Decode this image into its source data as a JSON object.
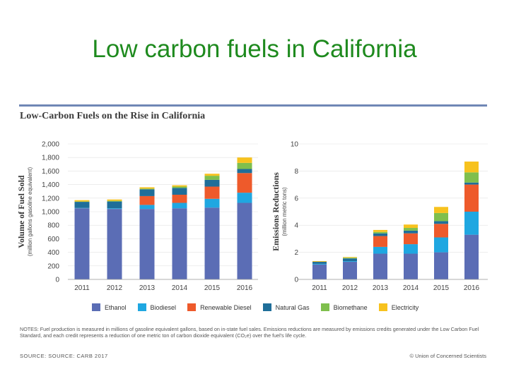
{
  "slide_title": "Low carbon fuels in California",
  "figure_title": "Low-Carbon Fuels on the Rise in California",
  "notes": "NOTES: Fuel production is measured in millions of gasoline equivalent gallons, based on in-state fuel sales. Emissions reductions are measured by emissions credits generated under the Low Carbon Fuel Standard, and each credit represents a reduction of one metric ton of carbon dioxide equivalent (CO₂e) over the fuel's life cycle.",
  "source": "SOURCE: SOURCE: CARB 2017",
  "credit": "© Union of Concerned Scientists",
  "colors": {
    "Ethanol": "#5b6db5",
    "Biodiesel": "#1fa7e1",
    "Renewable Diesel": "#ee5a2b",
    "Natural Gas": "#1f6e99",
    "Biomethane": "#7fbf4d",
    "Electricity": "#f7c21e"
  },
  "chart_data": [
    {
      "type": "bar",
      "stacked": true,
      "ylabel": "Volume of Fuel Sold",
      "ylabel_sub": "(million gallons gasoline equivalent)",
      "ylim": [
        0,
        2000
      ],
      "yticks": [
        0,
        200,
        400,
        600,
        800,
        1000,
        1200,
        1400,
        1600,
        1800,
        2000
      ],
      "ytick_labels": [
        "0",
        "200",
        "400",
        "600",
        "800",
        "1,000",
        "1,200",
        "1,400",
        "1,600",
        "1,800",
        "2,000"
      ],
      "categories": [
        "2011",
        "2012",
        "2013",
        "2014",
        "2015",
        "2016"
      ],
      "series": [
        {
          "name": "Ethanol",
          "values": [
            1050,
            1040,
            1040,
            1050,
            1060,
            1130
          ]
        },
        {
          "name": "Biodiesel",
          "values": [
            5,
            10,
            60,
            80,
            130,
            150
          ]
        },
        {
          "name": "Renewable Diesel",
          "values": [
            0,
            0,
            130,
            120,
            180,
            290
          ]
        },
        {
          "name": "Natural Gas",
          "values": [
            90,
            100,
            100,
            100,
            100,
            60
          ]
        },
        {
          "name": "Biomethane",
          "values": [
            5,
            10,
            10,
            20,
            60,
            90
          ]
        },
        {
          "name": "Electricity",
          "values": [
            20,
            20,
            20,
            20,
            30,
            80
          ]
        }
      ]
    },
    {
      "type": "bar",
      "stacked": true,
      "ylabel": "Emissions Reductions",
      "ylabel_sub": "(million metric tons)",
      "ylim": [
        0,
        10
      ],
      "yticks": [
        0,
        2,
        4,
        6,
        8,
        10
      ],
      "ytick_labels": [
        "0",
        "2",
        "4",
        "6",
        "8",
        "10"
      ],
      "categories": [
        "2011",
        "2012",
        "2013",
        "2014",
        "2015",
        "2016"
      ],
      "series": [
        {
          "name": "Ethanol",
          "values": [
            1.1,
            1.3,
            1.9,
            1.9,
            2.0,
            3.3
          ]
        },
        {
          "name": "Biodiesel",
          "values": [
            0.05,
            0.05,
            0.5,
            0.7,
            1.1,
            1.7
          ]
        },
        {
          "name": "Renewable Diesel",
          "values": [
            0,
            0,
            0.8,
            0.8,
            1.0,
            2.0
          ]
        },
        {
          "name": "Natural Gas",
          "values": [
            0.15,
            0.2,
            0.2,
            0.2,
            0.2,
            0.15
          ]
        },
        {
          "name": "Biomethane",
          "values": [
            0,
            0.05,
            0.1,
            0.2,
            0.6,
            0.75
          ]
        },
        {
          "name": "Electricity",
          "values": [
            0.05,
            0.05,
            0.15,
            0.25,
            0.45,
            0.8
          ]
        }
      ]
    }
  ]
}
